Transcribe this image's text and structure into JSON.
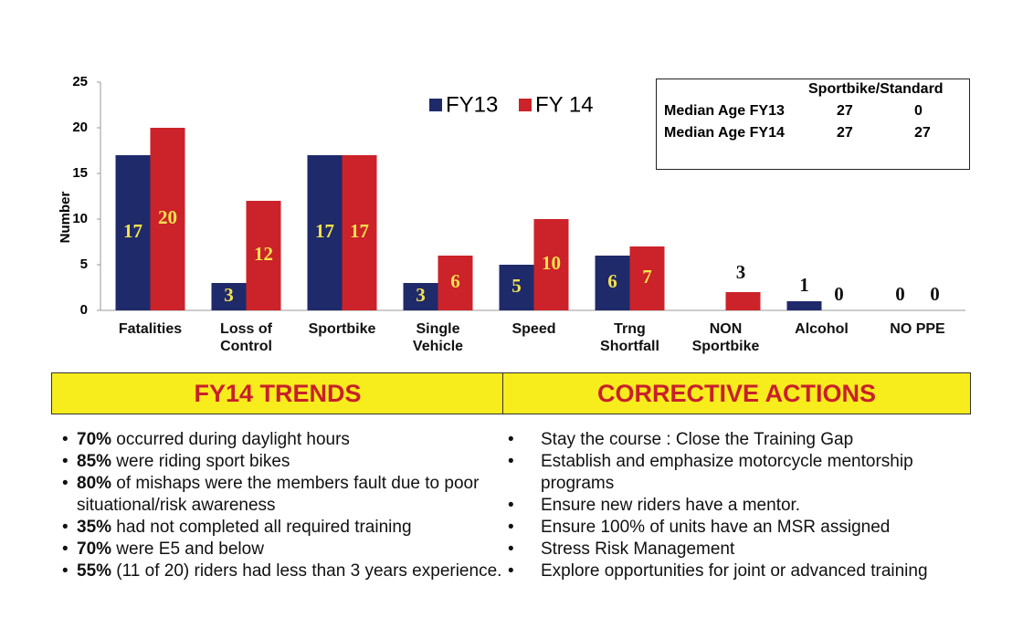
{
  "chart_data": {
    "type": "bar",
    "y_label": "Number",
    "categories": [
      "Fatalities",
      "Loss of Control",
      "Sportbike",
      "Single Vehicle",
      "Speed",
      "Trng Shortfall",
      "NON Sportbike",
      "Alcohol",
      "NO PPE"
    ],
    "series": [
      {
        "name": "FY13",
        "color": "#1f2a6b",
        "values": [
          17,
          3,
          17,
          3,
          5,
          6,
          null,
          1,
          0
        ]
      },
      {
        "name": "FY 14",
        "color": "#cc2229",
        "values": [
          20,
          12,
          17,
          6,
          10,
          7,
          2,
          0,
          0
        ],
        "value_labels": [
          "20",
          "12",
          "17",
          "6",
          "10",
          "7",
          null,
          "0",
          "0"
        ]
      }
    ],
    "annotations": [
      "3"
    ],
    "ylim": [
      0,
      25
    ],
    "yticks": [
      0,
      5,
      10,
      15,
      20,
      25
    ],
    "grid": false
  },
  "inset_table": {
    "header": "Sportbike/Standard",
    "rows": [
      [
        "Median Age FY13",
        "27",
        "0"
      ],
      [
        "Median Age FY14",
        "27",
        "27"
      ]
    ]
  },
  "trends": {
    "title": "FY14 TRENDS",
    "items": [
      {
        "bold": "70%",
        "text": " occurred during daylight hours"
      },
      {
        "bold": "85%",
        "text": " were riding sport bikes"
      },
      {
        "bold": "80%",
        "text": " of mishaps were the members fault due to poor situational/risk awareness"
      },
      {
        "bold": "35%",
        "text": " had not completed all required training"
      },
      {
        "bold": "70%",
        "text": " were E5 and below"
      },
      {
        "bold": "55%",
        "text": " (11 of 20) riders had less than 3 years experience."
      }
    ]
  },
  "actions": {
    "title": "CORRECTIVE ACTIONS",
    "items": [
      "Stay the course : Close the Training Gap",
      "Establish and emphasize motorcycle mentorship programs",
      "Ensure new riders have a mentor.",
      "Ensure 100% of units have an MSR assigned",
      "Stress Risk Management",
      "Explore opportunities for joint or advanced training"
    ]
  }
}
